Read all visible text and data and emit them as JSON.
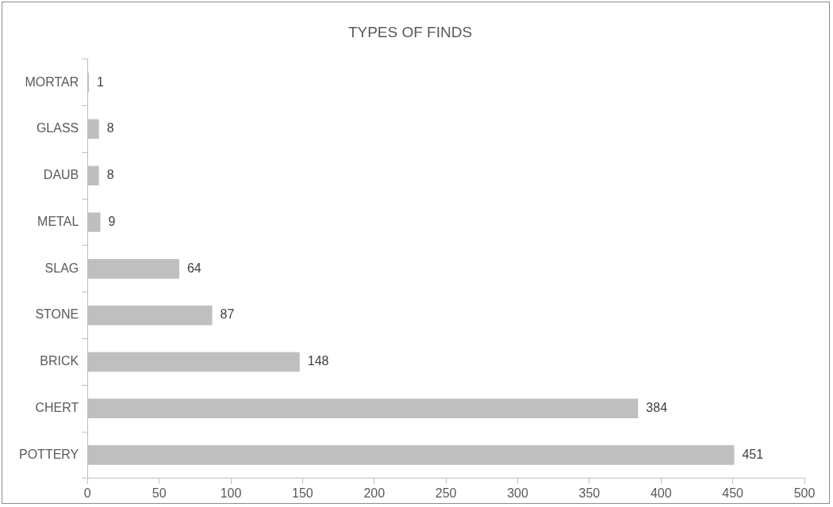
{
  "chart_data": {
    "type": "bar",
    "orientation": "horizontal",
    "title": "TYPES OF FINDS",
    "categories": [
      "MORTAR",
      "GLASS",
      "DAUB",
      "METAL",
      "SLAG",
      "STONE",
      "BRICK",
      "CHERT",
      "POTTERY"
    ],
    "values": [
      1,
      8,
      8,
      9,
      64,
      87,
      148,
      384,
      451
    ],
    "color": "#bfbfbf",
    "xlim": [
      0,
      500
    ],
    "xticks": [
      0,
      50,
      100,
      150,
      200,
      250,
      300,
      350,
      400,
      450,
      500
    ],
    "grid": false,
    "legend": false,
    "data_labels": true
  }
}
